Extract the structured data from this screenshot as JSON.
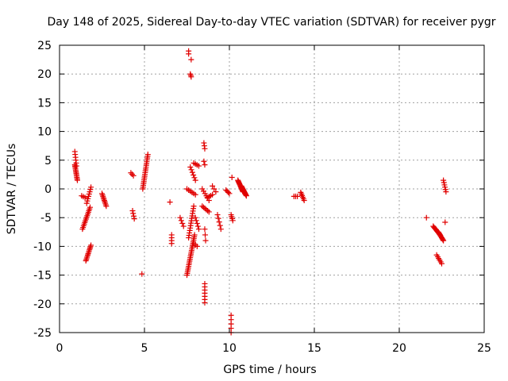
{
  "chart_data": {
    "type": "scatter",
    "title": "Day 148 of 2025, Sidereal Day-to-day VTEC variation (SDTVAR) for receiver pygr",
    "xlabel": "GPS time / hours",
    "ylabel": "SDTVAR / TECUs",
    "xlim": [
      0,
      25
    ],
    "ylim": [
      -25,
      25
    ],
    "xticks": [
      0,
      5,
      10,
      15,
      20,
      25
    ],
    "yticks": [
      -25,
      -20,
      -15,
      -10,
      -5,
      0,
      5,
      10,
      15,
      20,
      25
    ],
    "xtick_labels": [
      "0",
      "5",
      "10",
      "15",
      "20",
      "25"
    ],
    "ytick_labels": [
      "-25",
      "-20",
      "-15",
      "-10",
      "-5",
      "0",
      "5",
      "10",
      "15",
      "20",
      "25"
    ],
    "grid": true,
    "marker": "+",
    "marker_color": "#e00000",
    "segments": [
      [
        0.9,
        6.5,
        1.0,
        4.0,
        6
      ],
      [
        0.9,
        4.2,
        1.05,
        1.5,
        12
      ],
      [
        1.3,
        -1.2,
        1.5,
        -1.5,
        3
      ],
      [
        1.35,
        -7.0,
        1.8,
        -3.2,
        14
      ],
      [
        1.55,
        -12.5,
        1.85,
        -9.8,
        12
      ],
      [
        1.6,
        -2.5,
        1.85,
        0.3,
        8
      ],
      [
        2.5,
        -0.8,
        2.75,
        -3.0,
        10
      ],
      [
        4.2,
        2.8,
        4.35,
        2.3,
        3
      ],
      [
        4.3,
        -3.8,
        4.4,
        -5.2,
        4
      ],
      [
        4.9,
        0.0,
        5.2,
        6.0,
        20
      ],
      [
        4.85,
        -14.8,
        4.85,
        -14.8,
        1
      ],
      [
        6.5,
        -2.3,
        6.5,
        -2.3,
        1
      ],
      [
        6.6,
        -8.0,
        6.6,
        -9.5,
        4
      ],
      [
        7.1,
        -5.0,
        7.3,
        -6.5,
        4
      ],
      [
        7.5,
        -15.0,
        7.95,
        -8.0,
        24
      ],
      [
        7.6,
        -8.5,
        7.9,
        -3.0,
        14
      ],
      [
        7.5,
        0.0,
        8.0,
        -1.0,
        6
      ],
      [
        7.7,
        3.8,
        8.0,
        1.5,
        6
      ],
      [
        7.6,
        24.0,
        7.6,
        23.5,
        2
      ],
      [
        7.7,
        20.0,
        7.75,
        19.5,
        3
      ],
      [
        7.75,
        22.5,
        7.75,
        22.5,
        1
      ],
      [
        7.9,
        4.5,
        8.2,
        4.0,
        4
      ],
      [
        7.9,
        -9.5,
        8.1,
        -10.0,
        3
      ],
      [
        8.0,
        -5.0,
        8.2,
        -7.0,
        5
      ],
      [
        8.5,
        8.0,
        8.55,
        7.0,
        3
      ],
      [
        8.5,
        4.8,
        8.55,
        4.2,
        2
      ],
      [
        8.55,
        -16.5,
        8.55,
        -19.8,
        7
      ],
      [
        8.55,
        -7.0,
        8.6,
        -9.0,
        3
      ],
      [
        8.4,
        -3.0,
        8.8,
        -4.0,
        6
      ],
      [
        8.4,
        0.0,
        8.8,
        -2.0,
        6
      ],
      [
        8.7,
        -1.5,
        9.0,
        -1.0,
        4
      ],
      [
        9.0,
        0.5,
        9.2,
        -0.5,
        3
      ],
      [
        9.3,
        -4.5,
        9.5,
        -7.0,
        5
      ],
      [
        9.8,
        -0.2,
        10.0,
        -0.8,
        4
      ],
      [
        10.1,
        -4.5,
        10.2,
        -5.5,
        4
      ],
      [
        10.1,
        -22.0,
        10.1,
        -25.0,
        5
      ],
      [
        10.15,
        2.0,
        10.2,
        2.0,
        1
      ],
      [
        10.5,
        1.5,
        10.8,
        -0.5,
        14
      ],
      [
        10.7,
        0.5,
        11.0,
        -1.2,
        14
      ],
      [
        13.8,
        -1.3,
        14.0,
        -1.3,
        3
      ],
      [
        14.2,
        -0.6,
        14.4,
        -2.0,
        6
      ],
      [
        21.6,
        -5.0,
        21.6,
        -5.0,
        1
      ],
      [
        22.0,
        -6.5,
        22.4,
        -8.0,
        10
      ],
      [
        22.3,
        -7.5,
        22.6,
        -9.0,
        10
      ],
      [
        22.2,
        -11.5,
        22.5,
        -13.0,
        6
      ],
      [
        22.6,
        1.5,
        22.75,
        -0.5,
        6
      ],
      [
        22.7,
        -5.8,
        22.7,
        -5.8,
        1
      ]
    ]
  }
}
